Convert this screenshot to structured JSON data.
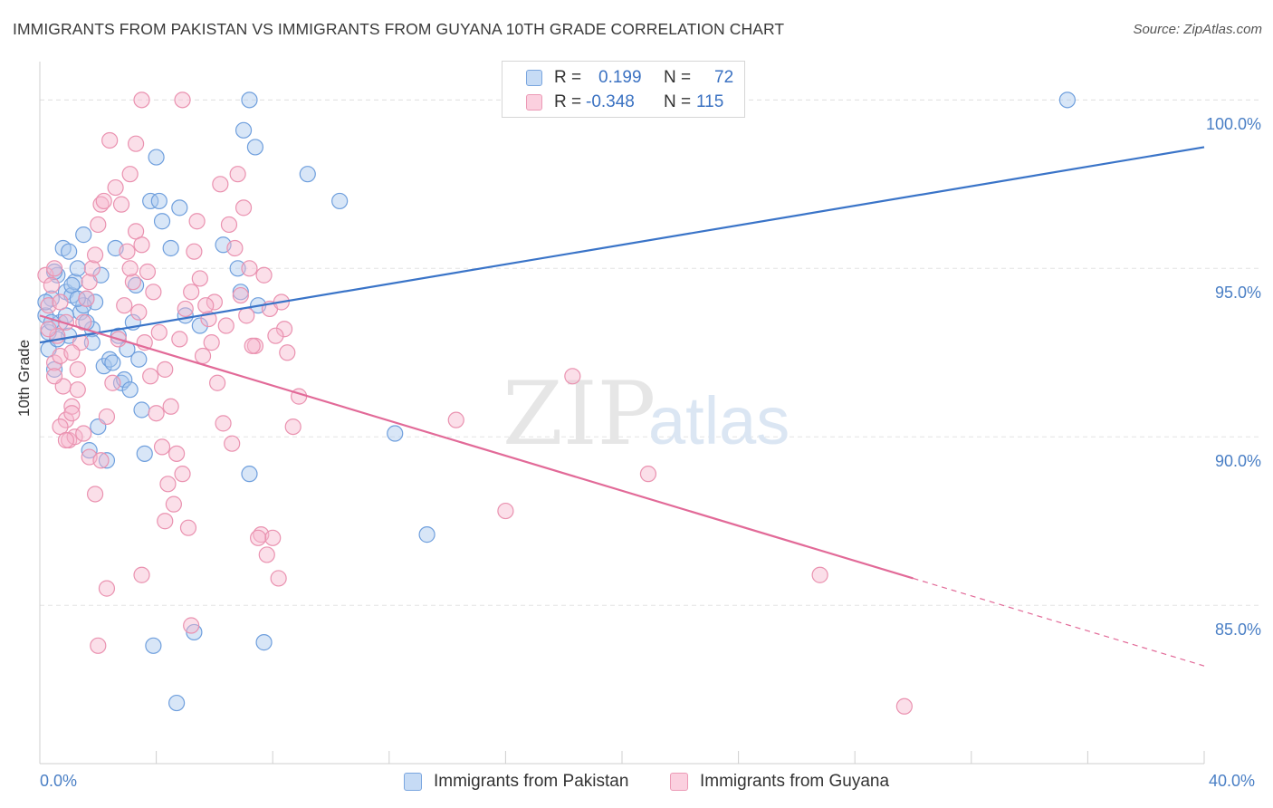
{
  "title": "IMMIGRANTS FROM PAKISTAN VS IMMIGRANTS FROM GUYANA 10TH GRADE CORRELATION CHART",
  "source": "Source: ZipAtlas.com",
  "watermark": {
    "zip": "ZIP",
    "atlas": "atlas"
  },
  "legend": {
    "r_label": "R =",
    "n_label": "N =",
    "pakistan": {
      "r": "0.199",
      "n": "72"
    },
    "guyana": {
      "r": "-0.348",
      "n": "115"
    }
  },
  "colors": {
    "pakistan_fill": "#a9c8ee",
    "pakistan_stroke": "#6f9fdd",
    "pakistan_line": "#3a74c8",
    "guyana_fill": "#f6b9ce",
    "guyana_stroke": "#ea92b0",
    "guyana_line": "#e26a98",
    "tick_label": "#4a7fc5",
    "grid": "#e4e4e4"
  },
  "chart_data": {
    "type": "scatter",
    "title": "IMMIGRANTS FROM PAKISTAN VS IMMIGRANTS FROM GUYANA 10TH GRADE CORRELATION CHART",
    "xlabel": "",
    "ylabel": "10th Grade",
    "xlim": [
      0,
      40
    ],
    "ylim": [
      80.3,
      101.3
    ],
    "x_tick_labels": [
      "0.0%",
      "40.0%"
    ],
    "y_ticks": [
      85,
      90,
      95,
      100
    ],
    "y_tick_labels": [
      "85.0%",
      "90.0%",
      "95.0%",
      "100.0%"
    ],
    "grid": true,
    "legend_position": "top-center",
    "series": [
      {
        "name": "Immigrants from Pakistan",
        "r": 0.199,
        "n": 72,
        "trend": {
          "x": [
            0,
            40
          ],
          "y": [
            92.8,
            98.6
          ]
        },
        "points": [
          [
            0.2,
            93.6
          ],
          [
            0.3,
            93.1
          ],
          [
            0.4,
            94.1
          ],
          [
            0.5,
            92.0
          ],
          [
            0.6,
            94.8
          ],
          [
            0.7,
            93.4
          ],
          [
            0.8,
            95.6
          ],
          [
            0.9,
            94.3
          ],
          [
            1.0,
            93.0
          ],
          [
            1.1,
            94.2
          ],
          [
            1.2,
            94.6
          ],
          [
            1.3,
            95.0
          ],
          [
            1.4,
            93.7
          ],
          [
            1.5,
            96.0
          ],
          [
            1.6,
            94.1
          ],
          [
            1.7,
            89.6
          ],
          [
            1.8,
            93.2
          ],
          [
            2.0,
            90.3
          ],
          [
            2.2,
            92.1
          ],
          [
            2.4,
            92.3
          ],
          [
            2.6,
            95.6
          ],
          [
            2.8,
            91.6
          ],
          [
            3.0,
            92.6
          ],
          [
            3.2,
            93.4
          ],
          [
            3.4,
            92.3
          ],
          [
            3.6,
            89.5
          ],
          [
            3.8,
            97.0
          ],
          [
            4.0,
            98.3
          ],
          [
            4.2,
            96.4
          ],
          [
            4.5,
            95.6
          ],
          [
            4.8,
            96.8
          ],
          [
            5.0,
            93.6
          ],
          [
            5.5,
            93.3
          ],
          [
            6.3,
            95.7
          ],
          [
            6.8,
            95.0
          ],
          [
            7.0,
            99.1
          ],
          [
            7.2,
            100.0
          ],
          [
            7.5,
            93.9
          ],
          [
            6.9,
            94.3
          ],
          [
            7.4,
            98.6
          ],
          [
            9.2,
            97.8
          ],
          [
            10.3,
            97.0
          ],
          [
            12.2,
            90.1
          ],
          [
            13.3,
            87.1
          ],
          [
            7.2,
            88.9
          ],
          [
            3.9,
            83.8
          ],
          [
            5.3,
            84.2
          ],
          [
            7.7,
            83.9
          ],
          [
            4.7,
            82.1
          ],
          [
            35.3,
            100.0
          ],
          [
            0.4,
            93.4
          ],
          [
            1.9,
            94.0
          ],
          [
            2.3,
            89.3
          ],
          [
            2.9,
            91.7
          ],
          [
            3.5,
            90.8
          ],
          [
            0.3,
            92.6
          ],
          [
            1.1,
            94.5
          ],
          [
            2.1,
            94.8
          ],
          [
            4.1,
            97.0
          ],
          [
            0.6,
            92.9
          ],
          [
            1.5,
            93.9
          ],
          [
            2.7,
            93.0
          ],
          [
            3.1,
            91.4
          ],
          [
            0.9,
            93.6
          ],
          [
            1.3,
            94.1
          ],
          [
            0.5,
            94.9
          ],
          [
            1.8,
            92.8
          ],
          [
            2.5,
            92.2
          ],
          [
            3.3,
            94.5
          ],
          [
            0.2,
            94.0
          ],
          [
            1.0,
            95.5
          ],
          [
            1.6,
            93.4
          ]
        ]
      },
      {
        "name": "Immigrants from Guyana",
        "r": -0.348,
        "n": 115,
        "trend": {
          "x": [
            0,
            40
          ],
          "y": [
            93.6,
            83.2
          ]
        },
        "trend_solid_until_x": 30,
        "points": [
          [
            0.2,
            94.8
          ],
          [
            0.3,
            93.9
          ],
          [
            0.4,
            94.5
          ],
          [
            0.5,
            92.2
          ],
          [
            0.6,
            93.0
          ],
          [
            0.7,
            92.4
          ],
          [
            0.8,
            91.5
          ],
          [
            0.9,
            90.5
          ],
          [
            1.0,
            89.9
          ],
          [
            1.1,
            90.9
          ],
          [
            1.2,
            90.0
          ],
          [
            1.3,
            92.0
          ],
          [
            1.4,
            92.8
          ],
          [
            1.5,
            93.4
          ],
          [
            1.6,
            94.1
          ],
          [
            1.7,
            94.6
          ],
          [
            1.8,
            95.0
          ],
          [
            1.9,
            95.4
          ],
          [
            2.0,
            96.3
          ],
          [
            2.1,
            96.9
          ],
          [
            2.2,
            97.0
          ],
          [
            2.4,
            98.8
          ],
          [
            2.6,
            97.4
          ],
          [
            2.8,
            96.9
          ],
          [
            3.0,
            95.5
          ],
          [
            3.2,
            94.6
          ],
          [
            3.4,
            93.7
          ],
          [
            3.6,
            92.8
          ],
          [
            3.8,
            91.8
          ],
          [
            4.0,
            90.7
          ],
          [
            4.2,
            89.7
          ],
          [
            4.4,
            88.6
          ],
          [
            4.6,
            88.0
          ],
          [
            4.8,
            92.9
          ],
          [
            5.0,
            93.8
          ],
          [
            5.2,
            94.3
          ],
          [
            5.4,
            96.4
          ],
          [
            5.6,
            92.4
          ],
          [
            5.8,
            93.5
          ],
          [
            6.0,
            94.0
          ],
          [
            6.2,
            97.5
          ],
          [
            6.4,
            93.3
          ],
          [
            6.6,
            89.8
          ],
          [
            6.8,
            97.8
          ],
          [
            7.0,
            96.8
          ],
          [
            7.2,
            95.0
          ],
          [
            7.4,
            92.7
          ],
          [
            7.6,
            87.1
          ],
          [
            7.8,
            86.5
          ],
          [
            8.0,
            87.0
          ],
          [
            8.2,
            85.8
          ],
          [
            8.4,
            93.2
          ],
          [
            4.9,
            100.0
          ],
          [
            3.5,
            100.0
          ],
          [
            3.3,
            98.7
          ],
          [
            3.1,
            97.8
          ],
          [
            18.3,
            91.8
          ],
          [
            14.3,
            90.5
          ],
          [
            16.0,
            87.8
          ],
          [
            20.9,
            88.9
          ],
          [
            26.8,
            85.9
          ],
          [
            29.7,
            82.0
          ],
          [
            2.3,
            85.5
          ],
          [
            2.0,
            83.8
          ],
          [
            3.5,
            85.9
          ],
          [
            5.2,
            84.4
          ],
          [
            0.5,
            95.0
          ],
          [
            0.7,
            94.0
          ],
          [
            0.9,
            93.4
          ],
          [
            1.1,
            92.5
          ],
          [
            1.3,
            91.4
          ],
          [
            1.5,
            90.1
          ],
          [
            1.7,
            89.4
          ],
          [
            1.9,
            88.3
          ],
          [
            2.1,
            89.3
          ],
          [
            2.3,
            90.6
          ],
          [
            2.5,
            91.6
          ],
          [
            2.7,
            92.9
          ],
          [
            2.9,
            93.9
          ],
          [
            3.1,
            95.0
          ],
          [
            3.3,
            96.1
          ],
          [
            3.5,
            95.7
          ],
          [
            3.7,
            94.9
          ],
          [
            3.9,
            94.3
          ],
          [
            4.1,
            93.1
          ],
          [
            4.3,
            92.0
          ],
          [
            4.5,
            90.9
          ],
          [
            4.7,
            89.5
          ],
          [
            4.9,
            88.9
          ],
          [
            5.1,
            87.3
          ],
          [
            5.3,
            95.5
          ],
          [
            5.5,
            94.7
          ],
          [
            5.7,
            93.9
          ],
          [
            5.9,
            92.8
          ],
          [
            6.1,
            91.6
          ],
          [
            6.3,
            90.4
          ],
          [
            6.5,
            96.3
          ],
          [
            6.7,
            95.6
          ],
          [
            6.9,
            94.2
          ],
          [
            7.1,
            93.6
          ],
          [
            7.3,
            92.7
          ],
          [
            7.5,
            87.0
          ],
          [
            7.7,
            94.8
          ],
          [
            7.9,
            93.8
          ],
          [
            8.1,
            93.0
          ],
          [
            8.3,
            94.0
          ],
          [
            8.5,
            92.5
          ],
          [
            8.7,
            90.3
          ],
          [
            8.9,
            91.2
          ],
          [
            0.3,
            93.2
          ],
          [
            0.5,
            91.8
          ],
          [
            0.7,
            90.3
          ],
          [
            0.9,
            89.9
          ],
          [
            1.1,
            90.7
          ],
          [
            4.3,
            87.5
          ]
        ]
      }
    ]
  },
  "bottom_legend": [
    "Immigrants from Pakistan",
    "Immigrants from Guyana"
  ]
}
